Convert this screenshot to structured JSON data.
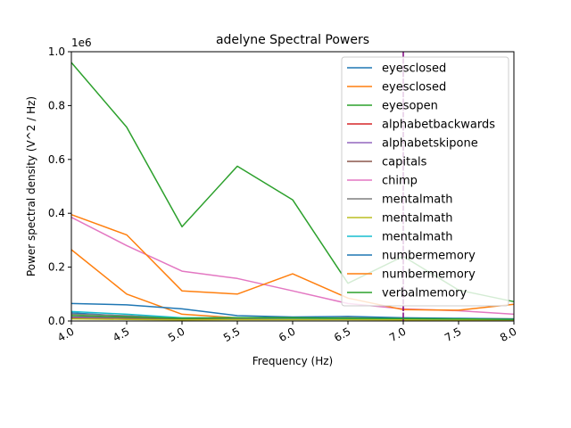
{
  "chart_data": {
    "type": "line",
    "title": "adelyne Spectral Powers",
    "xlabel": "Frequency (Hz)",
    "ylabel": "Power spectral density (V^2 / Hz)",
    "y_offset_label": "1e6",
    "xlim": [
      4.0,
      8.0
    ],
    "ylim": [
      0,
      1.0
    ],
    "y_multiplier": 1000000,
    "x_ticks": [
      "4.0",
      "4.5",
      "5.0",
      "5.5",
      "6.0",
      "6.5",
      "7.0",
      "7.5",
      "8.0"
    ],
    "y_ticks": [
      "0.0",
      "0.2",
      "0.4",
      "0.6",
      "0.8",
      "1.0"
    ],
    "x": [
      4.0,
      4.5,
      5.0,
      5.5,
      6.0,
      6.5,
      7.0,
      7.5,
      8.0
    ],
    "vline": {
      "x": 7.0,
      "color": "#800080"
    },
    "legend_position": "upper right",
    "grid": false,
    "series": [
      {
        "name": "eyesclosed",
        "color": "#1f77b4",
        "values": [
          0.03,
          0.018,
          0.008,
          0.01,
          0.01,
          0.009,
          0.008,
          0.006,
          0.005
        ]
      },
      {
        "name": "eyesclosed",
        "color": "#ff7f0e",
        "values": [
          0.265,
          0.1,
          0.025,
          0.012,
          0.01,
          0.012,
          0.01,
          0.009,
          0.008
        ]
      },
      {
        "name": "eyesopen",
        "color": "#2ca02c",
        "values": [
          0.96,
          0.72,
          0.35,
          0.575,
          0.45,
          0.14,
          0.24,
          0.115,
          0.072
        ]
      },
      {
        "name": "alphabetbackwards",
        "color": "#d62728",
        "values": [
          0.012,
          0.01,
          0.007,
          0.008,
          0.008,
          0.008,
          0.007,
          0.006,
          0.005
        ]
      },
      {
        "name": "alphabetskipone",
        "color": "#9467bd",
        "values": [
          0.015,
          0.012,
          0.008,
          0.009,
          0.008,
          0.008,
          0.007,
          0.006,
          0.005
        ]
      },
      {
        "name": "capitals",
        "color": "#8c564b",
        "values": [
          0.01,
          0.009,
          0.006,
          0.007,
          0.007,
          0.007,
          0.006,
          0.005,
          0.004
        ]
      },
      {
        "name": "chimp",
        "color": "#e377c2",
        "values": [
          0.385,
          0.28,
          0.185,
          0.158,
          0.112,
          0.065,
          0.045,
          0.038,
          0.025
        ]
      },
      {
        "name": "mentalmath",
        "color": "#7f7f7f",
        "values": [
          0.025,
          0.02,
          0.01,
          0.012,
          0.011,
          0.01,
          0.009,
          0.008,
          0.007
        ]
      },
      {
        "name": "mentalmath",
        "color": "#bcbd22",
        "values": [
          0.008,
          0.006,
          0.004,
          0.005,
          0.005,
          0.005,
          0.004,
          0.004,
          0.003
        ]
      },
      {
        "name": "mentalmath",
        "color": "#17becf",
        "values": [
          0.035,
          0.025,
          0.012,
          0.012,
          0.011,
          0.01,
          0.009,
          0.008,
          0.007
        ]
      },
      {
        "name": "numbermemory",
        "color": "#1f77b4",
        "values": [
          0.065,
          0.06,
          0.045,
          0.02,
          0.015,
          0.017,
          0.012,
          0.01,
          0.008
        ]
      },
      {
        "name": "numbermemory",
        "color": "#ff7f0e",
        "values": [
          0.395,
          0.32,
          0.112,
          0.1,
          0.175,
          0.085,
          0.042,
          0.04,
          0.062
        ]
      },
      {
        "name": "verbalmemory",
        "color": "#2ca02c",
        "values": [
          0.02,
          0.015,
          0.01,
          0.012,
          0.012,
          0.01,
          0.009,
          0.008,
          0.006
        ]
      }
    ]
  }
}
